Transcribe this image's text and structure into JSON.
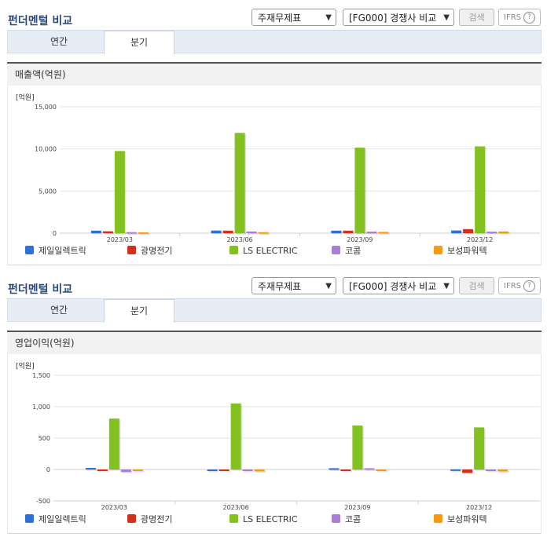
{
  "header": {
    "title": "펀더멘털 비교",
    "select1": "주재무제표",
    "select2": "[FG000] 경쟁사 비교",
    "search_label": "검색",
    "ifrs_label": "IFRS"
  },
  "tabs": [
    "연간",
    "분기"
  ],
  "active_tab": "분기",
  "colors": [
    "#2f6fd6",
    "#d0311c",
    "#82c11f",
    "#a97fd6",
    "#f59a12"
  ],
  "chart_data": [
    {
      "type": "bar",
      "title": "매출액(억원)",
      "unit": "[억원]",
      "categories": [
        "2023/03",
        "2023/06",
        "2023/09",
        "2023/12"
      ],
      "ylim": [
        0,
        15000
      ],
      "yticks": [
        0,
        5000,
        10000,
        15000
      ],
      "ytick_labels": [
        "0",
        "5,000",
        "10,000",
        "15,000"
      ],
      "grid": true,
      "legend": "bottom",
      "series": [
        {
          "name": "제일일렉트릭",
          "values": [
            300,
            310,
            300,
            320
          ]
        },
        {
          "name": "광명전기",
          "values": [
            220,
            300,
            300,
            480
          ]
        },
        {
          "name": "LS ELECTRIC",
          "values": [
            9750,
            11900,
            10150,
            10300
          ]
        },
        {
          "name": "코콤",
          "values": [
            120,
            200,
            180,
            180
          ]
        },
        {
          "name": "보성파워텍",
          "values": [
            100,
            120,
            150,
            200
          ]
        }
      ]
    },
    {
      "type": "bar",
      "title": "영업이익(억원)",
      "unit": "[억원]",
      "categories": [
        "2023/03",
        "2023/06",
        "2023/09",
        "2023/12"
      ],
      "ylim": [
        -500,
        1500
      ],
      "yticks": [
        -500,
        0,
        500,
        1000,
        1500
      ],
      "ytick_labels": [
        "-500",
        "0",
        "500",
        "1,000",
        "1,500"
      ],
      "grid": true,
      "legend": "bottom",
      "series": [
        {
          "name": "제일일렉트릭",
          "values": [
            25,
            -15,
            20,
            2
          ]
        },
        {
          "name": "광명전기",
          "values": [
            -10,
            -5,
            -5,
            -55
          ]
        },
        {
          "name": "LS ELECTRIC",
          "values": [
            810,
            1050,
            700,
            670
          ]
        },
        {
          "name": "코콤",
          "values": [
            -40,
            -10,
            20,
            -5
          ]
        },
        {
          "name": "보성파워텍",
          "values": [
            -25,
            -30,
            -10,
            -30
          ]
        }
      ]
    }
  ]
}
